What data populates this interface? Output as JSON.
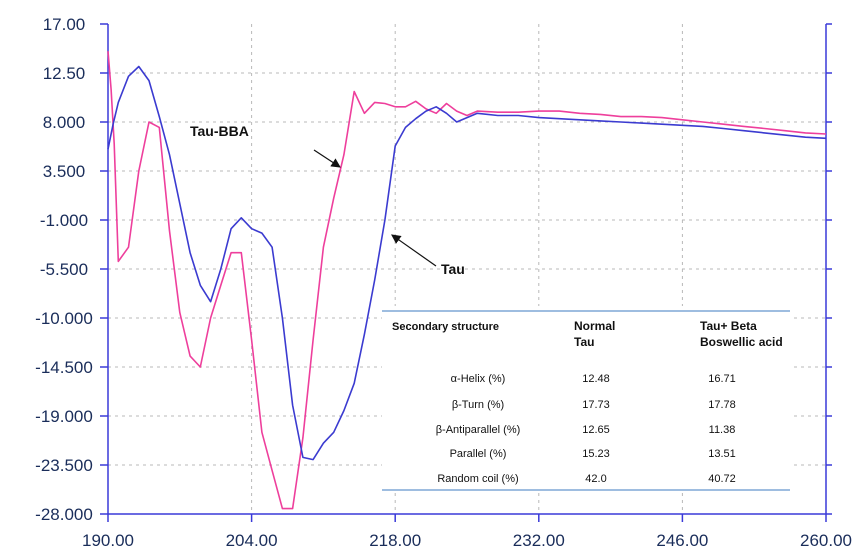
{
  "chart_data": {
    "type": "line",
    "title": "",
    "xlabel": "",
    "ylabel": "",
    "xlim": [
      190,
      260
    ],
    "ylim": [
      -28,
      17
    ],
    "x_ticks": [
      "190.00",
      "204.00",
      "218.00",
      "232.00",
      "246.00",
      "260.00"
    ],
    "x_tick_values": [
      190,
      204,
      218,
      232,
      246,
      260
    ],
    "y_ticks": [
      "17.00",
      "12.50",
      "8.000",
      "3.500",
      "-1.000",
      "-5.500",
      "-10.000",
      "-14.500",
      "-19.000",
      "-23.500",
      "-28.000"
    ],
    "y_tick_values": [
      17,
      12.5,
      8,
      3.5,
      -1,
      -5.5,
      -10,
      -14.5,
      -19,
      -23.5,
      -28
    ],
    "grid": true,
    "series": [
      {
        "name": "Tau",
        "color": "#3b3bd0",
        "x": [
          190,
          190.5,
          191,
          192,
          193,
          194,
          195,
          196,
          197,
          198,
          199,
          200,
          201,
          202,
          203,
          204,
          205,
          206,
          207,
          208,
          209,
          210,
          211,
          212,
          213,
          214,
          215,
          216,
          217,
          218,
          219,
          220,
          221,
          222,
          223,
          224,
          225,
          226,
          228,
          230,
          232,
          234,
          236,
          238,
          240,
          242,
          244,
          246,
          248,
          250,
          252,
          254,
          256,
          258,
          260
        ],
        "y": [
          5.5,
          7.8,
          9.8,
          12.2,
          13.1,
          11.8,
          8.5,
          5.0,
          0.5,
          -4.0,
          -7.0,
          -8.5,
          -5.5,
          -1.8,
          -0.8,
          -1.8,
          -2.2,
          -3.5,
          -10.0,
          -18.0,
          -22.8,
          -23.0,
          -21.5,
          -20.5,
          -18.5,
          -16.0,
          -11.5,
          -6.5,
          -1.0,
          5.8,
          7.5,
          8.3,
          9.0,
          9.4,
          8.8,
          8.0,
          8.4,
          8.8,
          8.6,
          8.6,
          8.4,
          8.3,
          8.2,
          8.1,
          8.0,
          7.9,
          7.8,
          7.7,
          7.6,
          7.4,
          7.2,
          7.0,
          6.8,
          6.6,
          6.5
        ]
      },
      {
        "name": "Tau-BBA",
        "color": "#ee3f9c",
        "x": [
          190,
          190.3,
          190.6,
          191,
          192,
          193,
          194,
          195,
          196,
          197,
          198,
          199,
          200,
          201,
          202,
          203,
          204,
          205,
          206,
          207,
          208,
          209,
          210,
          211,
          212,
          213,
          214,
          215,
          216,
          217,
          218,
          219,
          220,
          221,
          222,
          223,
          224,
          225,
          226,
          228,
          230,
          232,
          234,
          236,
          238,
          240,
          242,
          244,
          246,
          248,
          250,
          252,
          254,
          256,
          258,
          260
        ],
        "y": [
          14.5,
          11.0,
          6.0,
          -4.8,
          -3.5,
          3.5,
          8.0,
          7.5,
          -2.0,
          -9.5,
          -13.5,
          -14.5,
          -10.0,
          -7.0,
          -4.0,
          -4.0,
          -12.0,
          -20.5,
          -24.0,
          -27.5,
          -27.5,
          -21.0,
          -12.0,
          -3.5,
          1.0,
          5.0,
          10.8,
          8.8,
          9.8,
          9.7,
          9.4,
          9.4,
          9.9,
          9.2,
          8.8,
          9.7,
          9.0,
          8.6,
          9.0,
          8.9,
          8.9,
          9.0,
          9.0,
          8.8,
          8.7,
          8.5,
          8.5,
          8.4,
          8.2,
          8.0,
          7.8,
          7.6,
          7.4,
          7.2,
          7.0,
          6.9
        ]
      }
    ],
    "annotations": [
      {
        "text": "Tau-BBA",
        "target_x": 212.8,
        "target_y": 3.5
      },
      {
        "text": "Tau",
        "target_x": 217.3,
        "target_y": -2.2
      }
    ],
    "inset_table": {
      "headers": [
        "Secondary structure",
        "Normal Tau",
        "Tau+ Beta Boswellic acid"
      ],
      "header_lines": [
        [
          "Secondary structure"
        ],
        [
          "Normal",
          "Tau"
        ],
        [
          "Tau+ Beta",
          "Boswellic acid"
        ]
      ],
      "rows": [
        [
          "α-Helix (%)",
          "12.48",
          "16.71"
        ],
        [
          "β-Turn (%)",
          "17.73",
          "17.78"
        ],
        [
          "β-Antiparallel (%)",
          "12.65",
          "11.38"
        ],
        [
          "Parallel (%)",
          "15.23",
          "13.51"
        ],
        [
          "Random coil (%)",
          "42.0",
          "40.72"
        ]
      ]
    }
  }
}
